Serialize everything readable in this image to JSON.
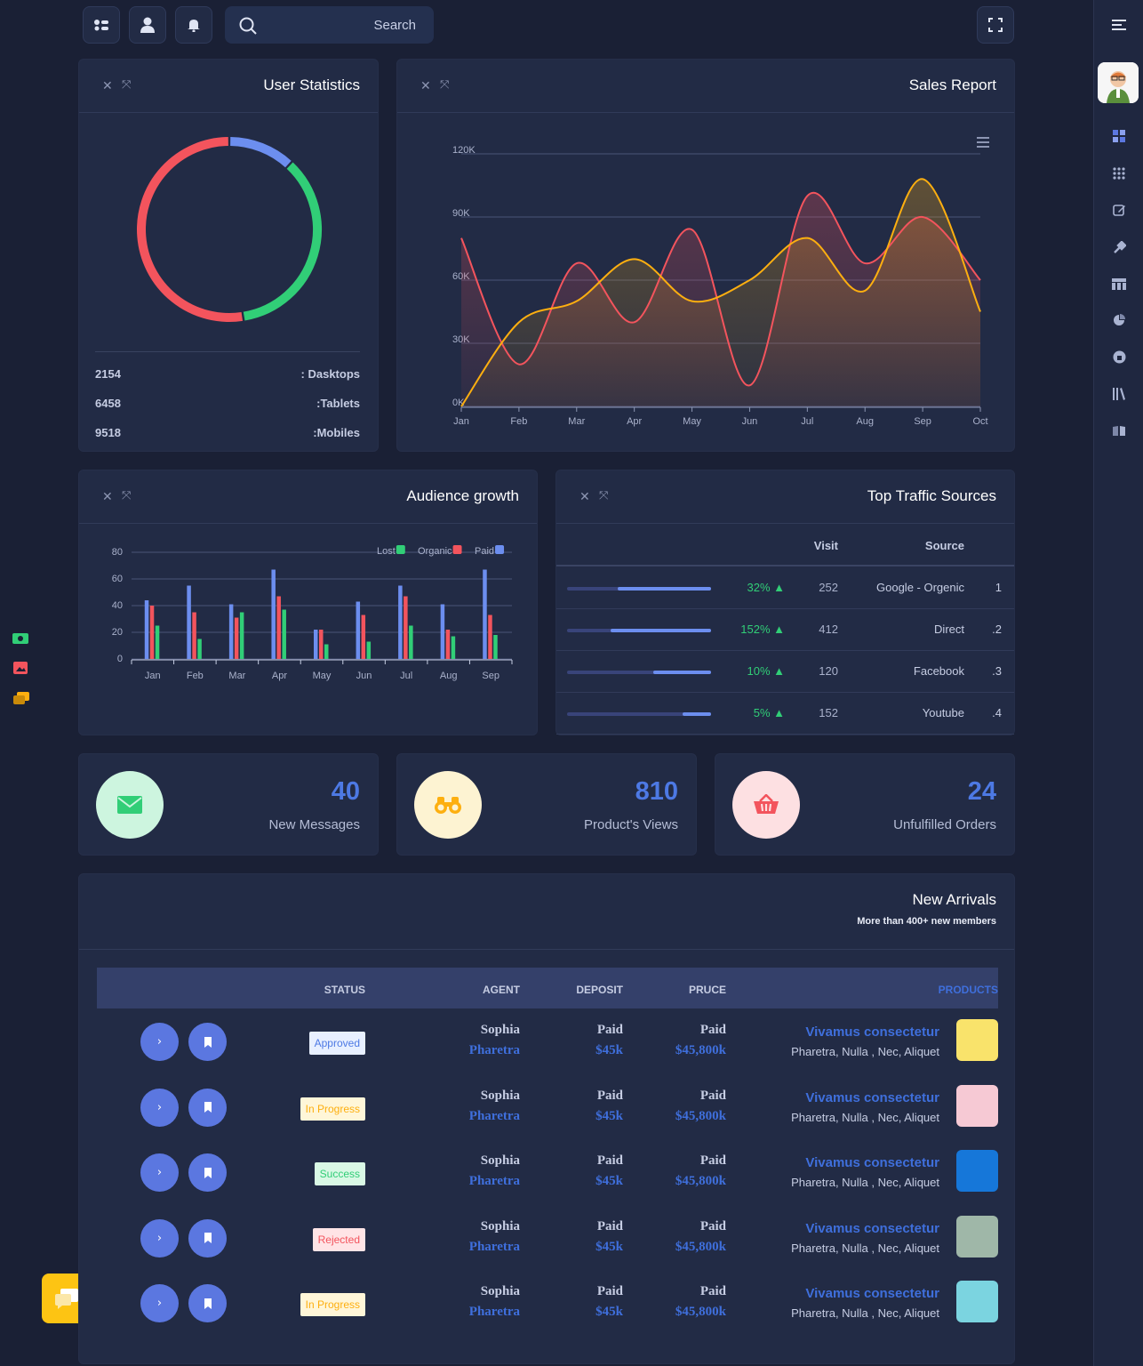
{
  "topbar": {
    "search_placeholder": "Search"
  },
  "user_statistics": {
    "title": "User Statistics",
    "rows": [
      {
        "value": "2154",
        "label": ": Dasktops"
      },
      {
        "value": "6458",
        "label": ":Tablets"
      },
      {
        "value": "9518",
        "label": ":Mobiles"
      }
    ],
    "chart_data": {
      "type": "pie",
      "categories": [
        "Dasktops",
        "Tablets",
        "Mobiles"
      ],
      "values": [
        2154,
        6458,
        9518
      ],
      "colors": [
        "#6c8eef",
        "#31ce77",
        "#f3545d"
      ]
    }
  },
  "sales_report": {
    "title": "Sales Report",
    "chart_data": {
      "type": "area",
      "categories": [
        "Jan",
        "Feb",
        "Mar",
        "Apr",
        "May",
        "Jun",
        "Jul",
        "Aug",
        "Sep",
        "Oct"
      ],
      "y_ticks": [
        "0K",
        "30K",
        "60K",
        "90K",
        "120K"
      ],
      "ylim": [
        0,
        120
      ],
      "series": [
        {
          "values": [
            80,
            20,
            68,
            40,
            84,
            10,
            100,
            68,
            90,
            60
          ],
          "color": "#f3545d"
        },
        {
          "values": [
            0,
            40,
            50,
            70,
            50,
            60,
            80,
            55,
            108,
            45
          ],
          "color": "#fdaf10"
        }
      ]
    }
  },
  "audience_growth": {
    "title": "Audience growth",
    "legend": [
      "Lost",
      "Organic",
      "Paid"
    ],
    "chart_data": {
      "type": "bar",
      "categories": [
        "Jan",
        "Feb",
        "Mar",
        "Apr",
        "May",
        "Jun",
        "Jul",
        "Aug",
        "Sep"
      ],
      "y_ticks": [
        "0",
        "20",
        "40",
        "60",
        "80"
      ],
      "ylim": [
        0,
        80
      ],
      "series": [
        {
          "name": "Paid",
          "values": [
            44,
            55,
            41,
            67,
            22,
            43,
            55,
            41,
            67
          ],
          "color": "#6c8eef"
        },
        {
          "name": "Organic",
          "values": [
            40,
            35,
            31,
            47,
            22,
            33,
            47,
            22,
            33
          ],
          "color": "#f3545d"
        },
        {
          "name": "Lost",
          "values": [
            25,
            15,
            35,
            37,
            11,
            13,
            25,
            17,
            18
          ],
          "color": "#31ce77"
        }
      ]
    }
  },
  "traffic": {
    "title": "Top Traffic Sources",
    "col_visit": "Visit",
    "col_source": "Source",
    "rows": [
      {
        "pct": "32% ▲",
        "visit": "252",
        "source": "Google - Orgenic",
        "num": "1",
        "fill": 0.65
      },
      {
        "pct": "152% ▲",
        "visit": "412",
        "source": "Direct",
        "num": ".2",
        "fill": 0.7
      },
      {
        "pct": "10% ▲",
        "visit": "120",
        "source": "Facebook",
        "num": ".3",
        "fill": 0.4
      },
      {
        "pct": "5% ▲",
        "visit": "152",
        "source": "Youtube",
        "num": ".4",
        "fill": 0.2
      }
    ]
  },
  "kpis": [
    {
      "number": "40",
      "label": "New Messages"
    },
    {
      "number": "810",
      "label": "Product's Views"
    },
    {
      "number": "24",
      "label": "Unfulfilled Orders"
    }
  ],
  "arrivals": {
    "title": "New Arrivals",
    "subtitle": "More than 400+ new members",
    "headers": {
      "status": "STATUS",
      "agent": "AGENT",
      "deposit": "DEPOSIT",
      "price": "PRUCE",
      "products": "PRODUCTS"
    },
    "rows": [
      {
        "status": "Approved",
        "agent": "Sophia",
        "agent2": "Pharetra",
        "dep": "Paid",
        "dep2": "$45k",
        "pr": "Paid",
        "pr2": "$45,800k",
        "prod": "Vivamus consectetur",
        "prod2": "Pharetra, Nulla , Nec, Aliquet"
      },
      {
        "status": "In Progress",
        "agent": "Sophia",
        "agent2": "Pharetra",
        "dep": "Paid",
        "dep2": "$45k",
        "pr": "Paid",
        "pr2": "$45,800k",
        "prod": "Vivamus consectetur",
        "prod2": "Pharetra, Nulla , Nec, Aliquet"
      },
      {
        "status": "Success",
        "agent": "Sophia",
        "agent2": "Pharetra",
        "dep": "Paid",
        "dep2": "$45k",
        "pr": "Paid",
        "pr2": "$45,800k",
        "prod": "Vivamus consectetur",
        "prod2": "Pharetra, Nulla , Nec, Aliquet"
      },
      {
        "status": "Rejected",
        "agent": "Sophia",
        "agent2": "Pharetra",
        "dep": "Paid",
        "dep2": "$45k",
        "pr": "Paid",
        "pr2": "$45,800k",
        "prod": "Vivamus consectetur",
        "prod2": "Pharetra, Nulla , Nec, Aliquet"
      },
      {
        "status": "In Progress",
        "agent": "Sophia",
        "agent2": "Pharetra",
        "dep": "Paid",
        "dep2": "$45k",
        "pr": "Paid",
        "pr2": "$45,800k",
        "prod": "Vivamus consectetur",
        "prod2": "Pharetra, Nulla , Nec, Aliquet"
      }
    ]
  }
}
